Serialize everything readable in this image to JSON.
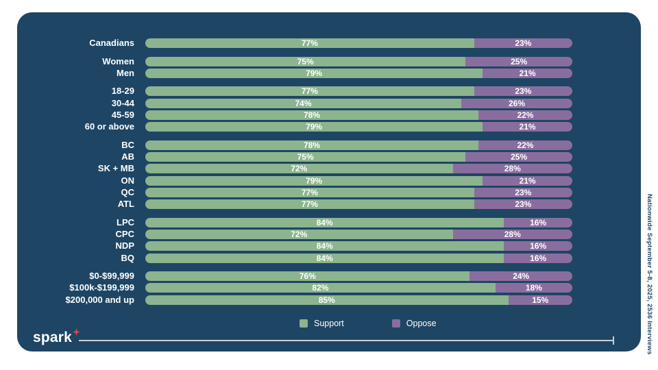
{
  "note_vertical": "Nationwide September 5-8, 2025, 2536 Interviews",
  "brand": {
    "name": "spark"
  },
  "legend": {
    "support_label": "Support",
    "oppose_label": "Oppose"
  },
  "colors": {
    "page_bg": "#ffffff",
    "card_bg": "#1e4564",
    "support": "#8cb48e",
    "oppose": "#8a6d9f",
    "footer_line": "#c9d3da",
    "brand_star": "#d9483b"
  },
  "chart_data": {
    "type": "bar",
    "orientation": "horizontal",
    "stacked": true,
    "value_format": "percent",
    "xlim": [
      0,
      100
    ],
    "grid": false,
    "legend_position": "bottom",
    "series_names": [
      "Support",
      "Oppose"
    ],
    "groups": [
      [
        {
          "label": "Canadians",
          "support": 77,
          "oppose": 23
        }
      ],
      [
        {
          "label": "Women",
          "support": 75,
          "oppose": 25
        },
        {
          "label": "Men",
          "support": 79,
          "oppose": 21
        }
      ],
      [
        {
          "label": "18-29",
          "support": 77,
          "oppose": 23
        },
        {
          "label": "30-44",
          "support": 74,
          "oppose": 26
        },
        {
          "label": "45-59",
          "support": 78,
          "oppose": 22
        },
        {
          "label": "60 or above",
          "support": 79,
          "oppose": 21
        }
      ],
      [
        {
          "label": "BC",
          "support": 78,
          "oppose": 22
        },
        {
          "label": "AB",
          "support": 75,
          "oppose": 25
        },
        {
          "label": "SK + MB",
          "support": 72,
          "oppose": 28
        },
        {
          "label": "ON",
          "support": 79,
          "oppose": 21
        },
        {
          "label": "QC",
          "support": 77,
          "oppose": 23
        },
        {
          "label": "ATL",
          "support": 77,
          "oppose": 23
        }
      ],
      [
        {
          "label": "LPC",
          "support": 84,
          "oppose": 16
        },
        {
          "label": "CPC",
          "support": 72,
          "oppose": 28
        },
        {
          "label": "NDP",
          "support": 84,
          "oppose": 16
        },
        {
          "label": "BQ",
          "support": 84,
          "oppose": 16
        }
      ],
      [
        {
          "label": "$0-$99,999",
          "support": 76,
          "oppose": 24
        },
        {
          "label": "$100k-$199,999",
          "support": 82,
          "oppose": 18
        },
        {
          "label": "$200,000 and up",
          "support": 85,
          "oppose": 15
        }
      ]
    ]
  }
}
